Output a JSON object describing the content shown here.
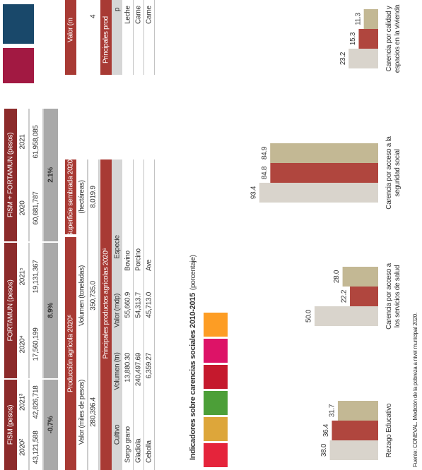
{
  "funds": {
    "groups": [
      {
        "name": "FISM (pesos)",
        "years": [
          "2020²",
          "2021³"
        ],
        "values": [
          "43,121,588",
          "42,826,718"
        ],
        "change": "-0.7%"
      },
      {
        "name": "FORTAMUN (pesos)",
        "years": [
          "2020⁴",
          "2021⁵"
        ],
        "values": [
          "17,560,199",
          "19,131,367"
        ],
        "change": "8.9%"
      },
      {
        "name": "FISM + FORTAMUN (pesos)",
        "years": [
          "2020",
          "2021"
        ],
        "values": [
          "60,681,787",
          "61,958,085"
        ],
        "change": "2.1%"
      }
    ]
  },
  "agri": {
    "title": "Producción agrícola 2020⁶",
    "headers": [
      "Valor (miles de pesos)",
      "Volumen (toneladas)"
    ],
    "values": [
      "280,396.4",
      "350,735.0"
    ]
  },
  "surface": {
    "title": "Superficie sembrada 2020⁶",
    "unit": "(hectáreas)",
    "value": "8,019.9"
  },
  "products": {
    "title": "Principales productos agrícolas 2020⁶",
    "headers": [
      "Cultivo",
      "Volumen (tn)",
      "Valor (mdp)",
      "Especie"
    ],
    "rows": [
      [
        "Sorgo grano",
        "13,880.30",
        "55,660.9",
        "Bovino"
      ],
      [
        "Gladiola",
        "240,497.69",
        "54,313.7",
        "Porcino"
      ],
      [
        "Cebolla",
        "6,359.27",
        "45,713.0",
        "Ave"
      ]
    ]
  },
  "livestock": {
    "header": "Valor (m",
    "value": "4",
    "title": "Principales prod",
    "subheader": "p",
    "rows": [
      "Leche",
      "Carne",
      "Carne"
    ]
  },
  "chart_data": {
    "type": "bar",
    "title": "Indicadores sobre carencias sociales 2010-2015",
    "subtitle": "(porcentaje)",
    "categories": [
      "Rezago Educativo",
      "Carencia por acceso a los servicios de salud",
      "Carencia por acceso a la seguridad social",
      "Carencia por calidad y espacios en la vivienda"
    ],
    "series": [
      {
        "color": "#d9d4cc",
        "values": [
          38.0,
          50.0,
          93.4,
          23.2
        ],
        "value_labels": [
          "38.0",
          "50.0",
          "93.4",
          "23.2"
        ]
      },
      {
        "color": "#b0463e",
        "values": [
          36.4,
          22.2,
          84.8,
          15.3
        ],
        "value_labels": [
          "36.4",
          "22.2",
          "84.8",
          "15.3"
        ]
      },
      {
        "color": "#c3b894",
        "values": [
          31.7,
          28.0,
          84.9,
          11.3
        ],
        "value_labels": [
          "31.7",
          "28.0",
          "84.9",
          "11.3"
        ]
      }
    ],
    "ylim": [
      0,
      100
    ]
  },
  "source": "Fuente: CONEVAL. Medición de la pobreza a nivel municipal 2020."
}
